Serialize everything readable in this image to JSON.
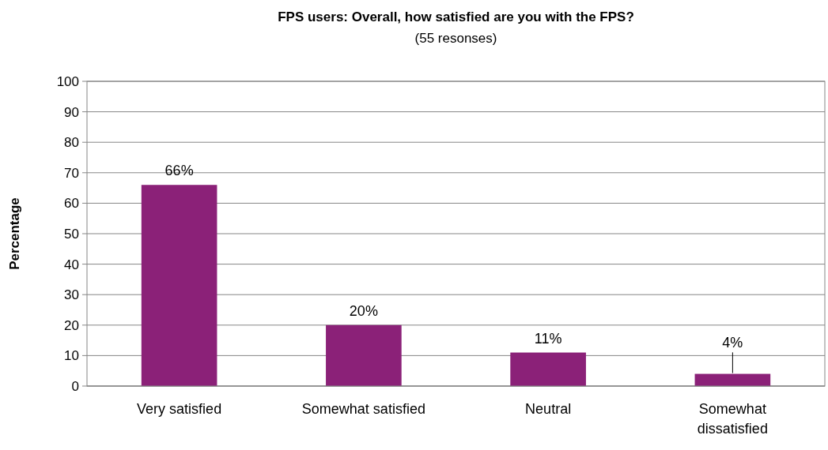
{
  "chart_data": {
    "type": "bar",
    "title": "FPS users: Overall, how satisfied are you with the FPS?",
    "subtitle": "(55 resonses)",
    "ylabel": "Percentage",
    "categories": [
      "Very satisfied",
      "Somewhat satisfied",
      "Neutral",
      "Somewhat dissatisfied"
    ],
    "values": [
      66,
      20,
      11,
      4
    ],
    "value_labels": [
      "66%",
      "20%",
      "11%",
      "4%"
    ],
    "color": "#8b2178",
    "ylim": [
      0,
      100
    ],
    "yticks": [
      0,
      10,
      20,
      30,
      40,
      50,
      60,
      70,
      80,
      90,
      100
    ],
    "grid": "y"
  }
}
